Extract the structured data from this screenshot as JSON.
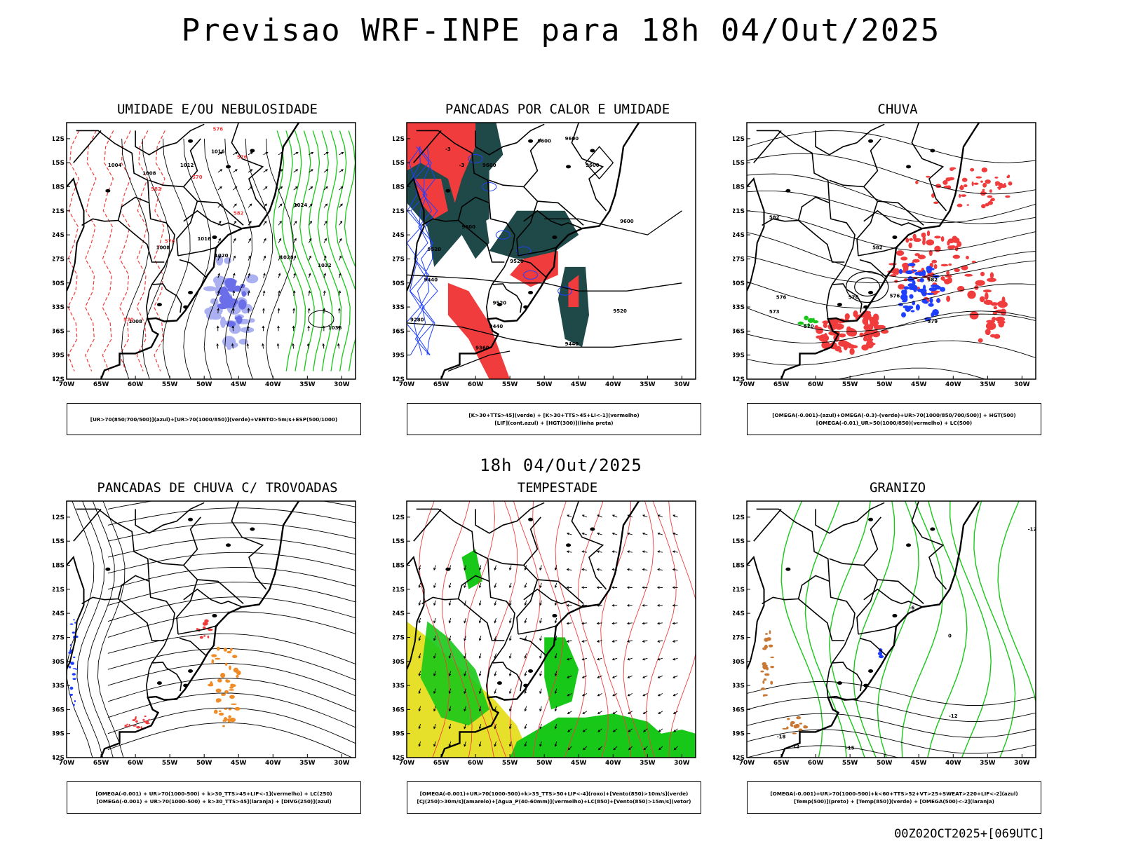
{
  "main_title": "Previsao WRF-INPE  para 18h 04/Out/2025",
  "mid_title": "18h 04/Out/2025",
  "footer": "00Z02OCT2025+[069UTC]",
  "axes": {
    "lat_ticks": [
      "12S",
      "15S",
      "18S",
      "21S",
      "24S",
      "27S",
      "30S",
      "33S",
      "36S",
      "39S",
      "42S"
    ],
    "lon_ticks": [
      "70W",
      "65W",
      "60W",
      "55W",
      "50W",
      "45W",
      "40W",
      "35W",
      "30W"
    ]
  },
  "colors": {
    "blue": "#1f3fff",
    "lightblue": "#aab0f0",
    "green": "#18c818",
    "red": "#f03c3c",
    "darkgreen": "#1f4848",
    "yellow": "#e6e02a",
    "orange": "#f08c28",
    "brown": "#c87832"
  },
  "panels": [
    {
      "title": "UMIDADE E/OU NEBULOSIDADE",
      "legend": [
        "[UR>70(850/700/500)](azul)+[UR>70(1000/850)](verde)+VENTO>5m/s+ESP(500/1000)"
      ],
      "contour_labels": [
        "1004",
        "1008",
        "1012",
        "1016",
        "1020",
        "1024",
        "1028",
        "1032",
        "1036",
        "570",
        "576",
        "582"
      ]
    },
    {
      "title": "PANCADAS POR CALOR E UMIDADE",
      "legend": [
        "[K>30+TTS>45](verde) + [K>30+TTS>45+LI<-1](vermelho)",
        "[LIF](cont.azul) + [HGT(300)](linha preta)"
      ],
      "contour_labels": [
        "9600",
        "9520",
        "9440",
        "9360",
        "9280",
        "-3"
      ]
    },
    {
      "title": "CHUVA",
      "legend": [
        "[OMEGA(-0.001)-(azul)+OMEGA(-0.3)-(verde)+UR>70(1000/850/700/500)] + HGT(500)",
        "[OMEGA(-0.01)_UR>50(1000/850)(vermelho) + LC(500)"
      ],
      "contour_labels": [
        "582",
        "576",
        "570",
        "564"
      ]
    },
    {
      "title": "PANCADAS DE CHUVA C/ TROVOADAS",
      "legend": [
        "[OMEGA(-0.001) + UR>70(1000-500) + k>30_TTS>45+LIF<-1](vermelho) + LC(250)",
        "[OMEGA(-0.001) + UR>70(1000-500) + k>30_TTS>45](laranja) + [DIVG(250)](azul)"
      ],
      "contour_labels": []
    },
    {
      "title": "TEMPESTADE",
      "legend": [
        "[OMEGA(-0.001)+UR>70(1000-500)+k>35_TTS>50+LIF<-4](roxo)+[Vento(850)>10m/s](verde)",
        "[CJ(250)>30m/s](amarelo)+[Agua_P(40-60mm)](vermelho)+LC(850)+[Vento(850)>15m/s](vetor)"
      ],
      "contour_labels": []
    },
    {
      "title": "GRANIZO",
      "legend": [
        "[OMEGA(-0.001)+UR>70(1000-500)+k<60+TTS>52+VT>25+SWEAT>220+LIF<-2](azul)",
        "[Temp(500)](preto) + [Temp(850)](verde) + [OMEGA(500)<-2](laranja)"
      ],
      "contour_labels": [
        "-18",
        "-12",
        "-15",
        "-6",
        "0"
      ]
    }
  ]
}
